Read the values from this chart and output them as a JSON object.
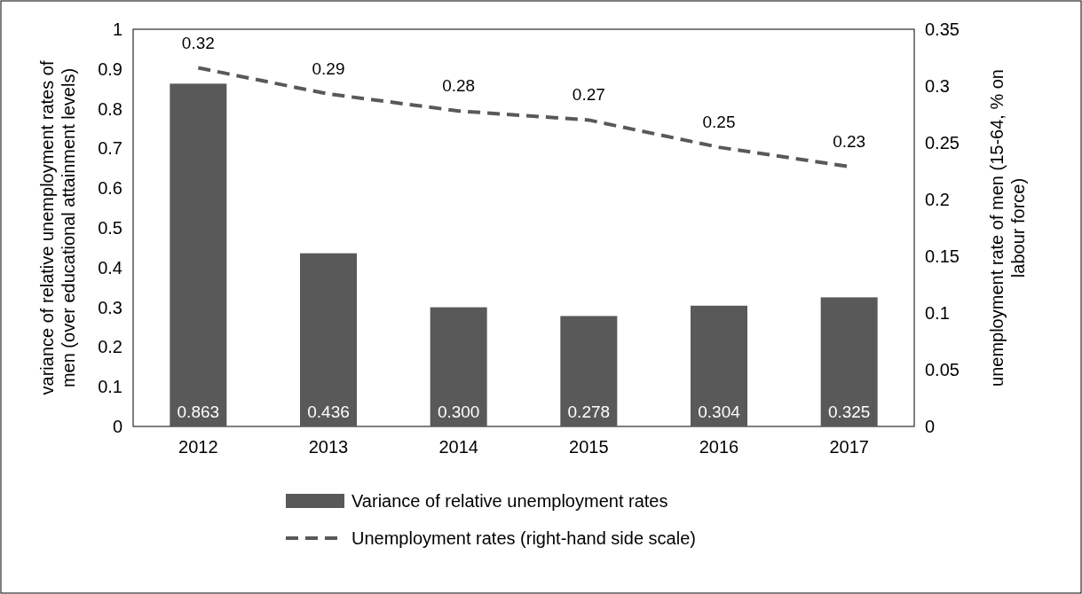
{
  "chart_data": {
    "type": "bar",
    "categories": [
      "2012",
      "2013",
      "2014",
      "2015",
      "2016",
      "2017"
    ],
    "ylabel": "variance of relative unemployment rates of men (over educational attainment levels)",
    "y2label": "unemployment rate of men (15-64, % on labour force)",
    "ylim": [
      0,
      1
    ],
    "yticks": [
      0,
      0.1,
      0.2,
      0.3,
      0.4,
      0.5,
      0.6,
      0.7,
      0.8,
      0.9,
      1
    ],
    "y2lim": [
      0,
      0.35
    ],
    "y2ticks": [
      0,
      0.05,
      0.1,
      0.15,
      0.2,
      0.25,
      0.3,
      0.35
    ],
    "legend": "bottom",
    "grid": false,
    "series": [
      {
        "name": "Variance of relative unemployment rates",
        "color": "#595959",
        "values": [
          0.863,
          0.436,
          0.3,
          0.278,
          0.304,
          0.325
        ],
        "value_labels": [
          "0.863",
          "0.436",
          "0.300",
          "0.278",
          "0.304",
          "0.325"
        ]
      },
      {
        "name": "Unemployment rates (right-hand side scale)",
        "type": "line",
        "axis": "y2",
        "color": "#595959",
        "line_style": "dashed",
        "marker": "none",
        "values": [
          0.316,
          0.293,
          0.278,
          0.27,
          0.246,
          0.229
        ],
        "value_labels": [
          "0.32",
          "0.29",
          "0.28",
          "0.27",
          "0.25",
          "0.23"
        ]
      }
    ]
  }
}
